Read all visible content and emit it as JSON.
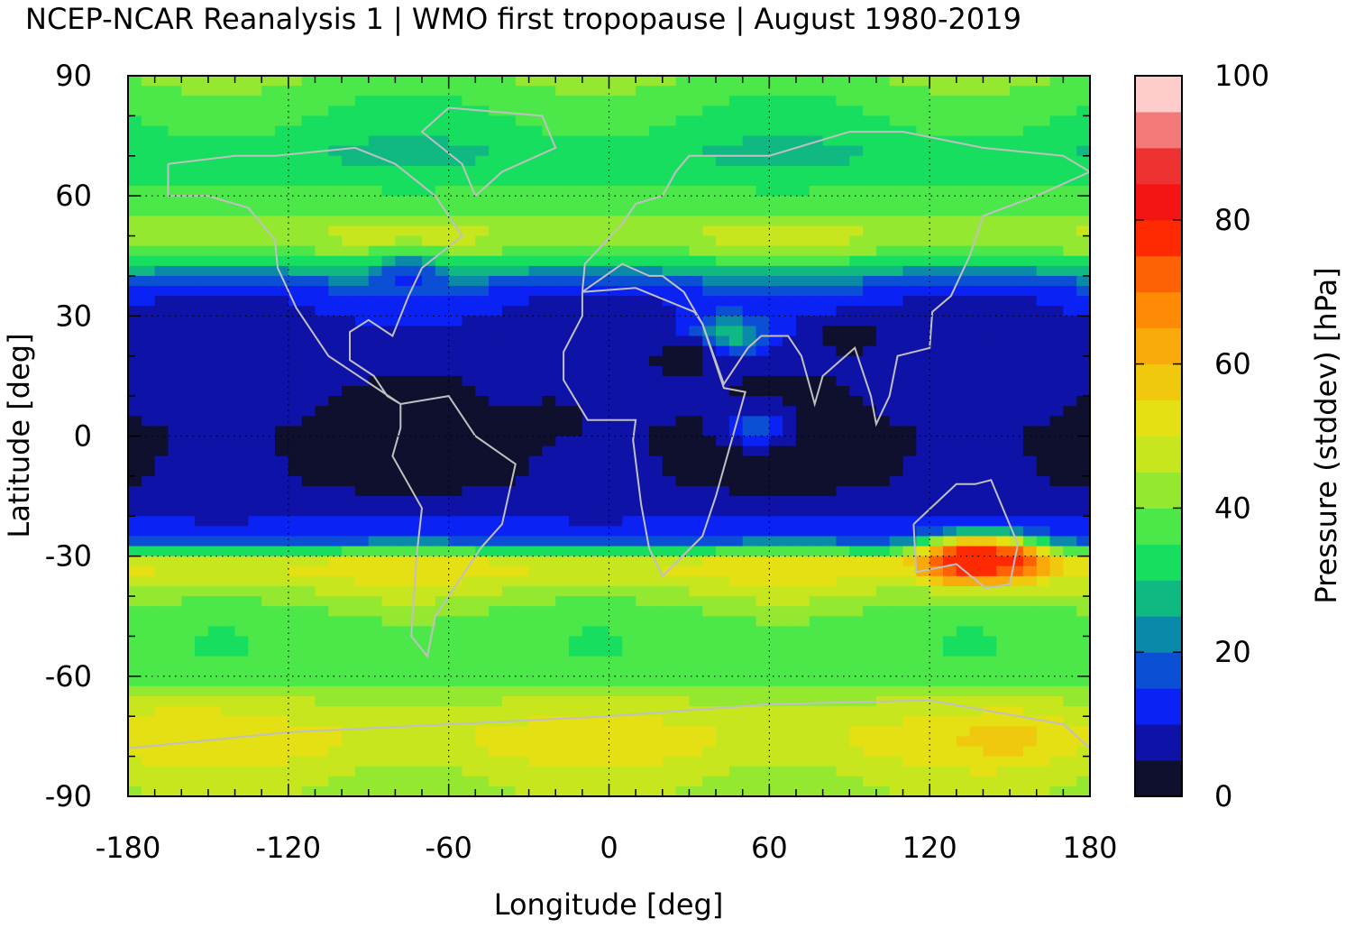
{
  "chart_data": {
    "type": "heatmap",
    "title": "NCEP-NCAR Reanalysis 1 | WMO first tropopause | August 1980-2019",
    "xlabel": "Longitude [deg]",
    "ylabel": "Latitude [deg]",
    "xlim": [
      -180,
      180
    ],
    "ylim": [
      -90,
      90
    ],
    "xticks": [
      "-180",
      "-120",
      "-60",
      "0",
      "60",
      "120",
      "180"
    ],
    "yticks": [
      "90",
      "60",
      "30",
      "0",
      "-30",
      "-60",
      "-90"
    ],
    "grid": true,
    "overlay": "coastlines",
    "colorbar": {
      "label": "Pressure (stddev) [hPa]",
      "range": [
        0,
        100
      ],
      "ticks": [
        "100",
        "80",
        "60",
        "40",
        "20",
        "0"
      ],
      "levels": [
        {
          "from": 0,
          "to": 5,
          "color": "#0f0f2e"
        },
        {
          "from": 5,
          "to": 10,
          "color": "#0f12a6"
        },
        {
          "from": 10,
          "to": 15,
          "color": "#0b22f5"
        },
        {
          "from": 15,
          "to": 20,
          "color": "#0a4fd4"
        },
        {
          "from": 20,
          "to": 25,
          "color": "#0a8aa8"
        },
        {
          "from": 25,
          "to": 30,
          "color": "#10b882"
        },
        {
          "from": 30,
          "to": 35,
          "color": "#17de5e"
        },
        {
          "from": 35,
          "to": 40,
          "color": "#4ce84a"
        },
        {
          "from": 40,
          "to": 45,
          "color": "#94e830"
        },
        {
          "from": 45,
          "to": 50,
          "color": "#c8e61e"
        },
        {
          "from": 50,
          "to": 55,
          "color": "#e4e014"
        },
        {
          "from": 55,
          "to": 60,
          "color": "#f0c80e"
        },
        {
          "from": 60,
          "to": 65,
          "color": "#f7aa0a"
        },
        {
          "from": 65,
          "to": 70,
          "color": "#ff8a06"
        },
        {
          "from": 70,
          "to": 75,
          "color": "#ff6204"
        },
        {
          "from": 75,
          "to": 80,
          "color": "#ff2a02"
        },
        {
          "from": 80,
          "to": 85,
          "color": "#f41414"
        },
        {
          "from": 85,
          "to": 90,
          "color": "#ee3232"
        },
        {
          "from": 90,
          "to": 95,
          "color": "#f47a7a"
        },
        {
          "from": 95,
          "to": 100,
          "color": "#ffcccc"
        }
      ]
    },
    "latitude_profile": [
      {
        "lat": 90,
        "value": 40
      },
      {
        "lat": 80,
        "value": 35
      },
      {
        "lat": 70,
        "value": 30
      },
      {
        "lat": 60,
        "value": 36
      },
      {
        "lat": 55,
        "value": 40
      },
      {
        "lat": 50,
        "value": 46
      },
      {
        "lat": 45,
        "value": 38
      },
      {
        "lat": 40,
        "value": 22
      },
      {
        "lat": 35,
        "value": 12
      },
      {
        "lat": 30,
        "value": 9
      },
      {
        "lat": 25,
        "value": 8
      },
      {
        "lat": 20,
        "value": 6
      },
      {
        "lat": 10,
        "value": 6
      },
      {
        "lat": 0,
        "value": 3
      },
      {
        "lat": -10,
        "value": 4
      },
      {
        "lat": -20,
        "value": 9
      },
      {
        "lat": -25,
        "value": 14
      },
      {
        "lat": -28,
        "value": 26
      },
      {
        "lat": -30,
        "value": 48
      },
      {
        "lat": -33,
        "value": 52
      },
      {
        "lat": -38,
        "value": 46
      },
      {
        "lat": -45,
        "value": 38
      },
      {
        "lat": -55,
        "value": 36
      },
      {
        "lat": -60,
        "value": 38
      },
      {
        "lat": -65,
        "value": 44
      },
      {
        "lat": -70,
        "value": 48
      },
      {
        "lat": -75,
        "value": 52
      },
      {
        "lat": -80,
        "value": 50
      },
      {
        "lat": -85,
        "value": 46
      },
      {
        "lat": -90,
        "value": 44
      }
    ],
    "regional_features": [
      {
        "lon": 140,
        "lat": -31,
        "value": 82
      },
      {
        "lon": 130,
        "lat": -31,
        "value": 78
      },
      {
        "lon": 150,
        "lat": -31,
        "value": 76
      },
      {
        "lon": 45,
        "lat": 25,
        "value": 32
      },
      {
        "lon": 55,
        "lat": 2,
        "value": 18
      },
      {
        "lon": 30,
        "lat": 20,
        "value": 3
      },
      {
        "lon": 90,
        "lat": 25,
        "value": 3
      },
      {
        "lon": -20,
        "lat": 5,
        "value": 3
      },
      {
        "lon": -75,
        "lat": 40,
        "value": 14
      },
      {
        "lon": 150,
        "lat": -75,
        "value": 58
      },
      {
        "lon": -160,
        "lat": -72,
        "value": 54
      }
    ]
  }
}
